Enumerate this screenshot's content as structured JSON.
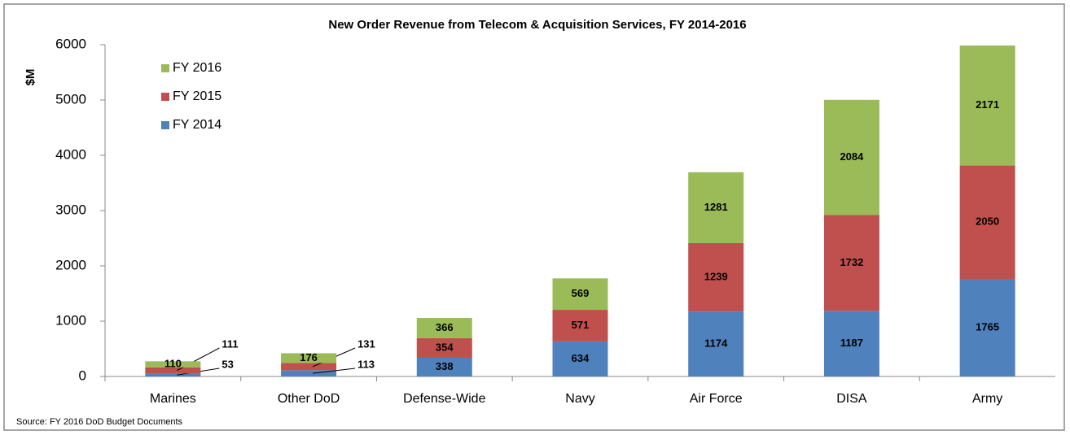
{
  "chart_data": {
    "type": "bar",
    "stacked": true,
    "title": "New Order Revenue from Telecom & Acquisition Services, FY 2014-2016",
    "y_label": "$M",
    "source": "Source: FY 2016 DoD Budget Documents",
    "categories": [
      "Marines",
      "Other DoD",
      "Defense-Wide",
      "Navy",
      "Air Force",
      "DISA",
      "Army"
    ],
    "series": [
      {
        "name": "FY 2014",
        "color": "#4f81bd",
        "values": [
          53,
          113,
          338,
          634,
          1174,
          1187,
          1765
        ]
      },
      {
        "name": "FY 2015",
        "color": "#c0504d",
        "values": [
          111,
          131,
          354,
          571,
          1239,
          1732,
          2050
        ]
      },
      {
        "name": "FY 2016",
        "color": "#9bbb59",
        "values": [
          110,
          176,
          366,
          569,
          1281,
          2084,
          2171
        ]
      }
    ],
    "ylim": [
      0,
      6000
    ],
    "yticks": [
      0,
      1000,
      2000,
      3000,
      4000,
      5000,
      6000
    ],
    "legend": "top-left",
    "grid": false
  }
}
